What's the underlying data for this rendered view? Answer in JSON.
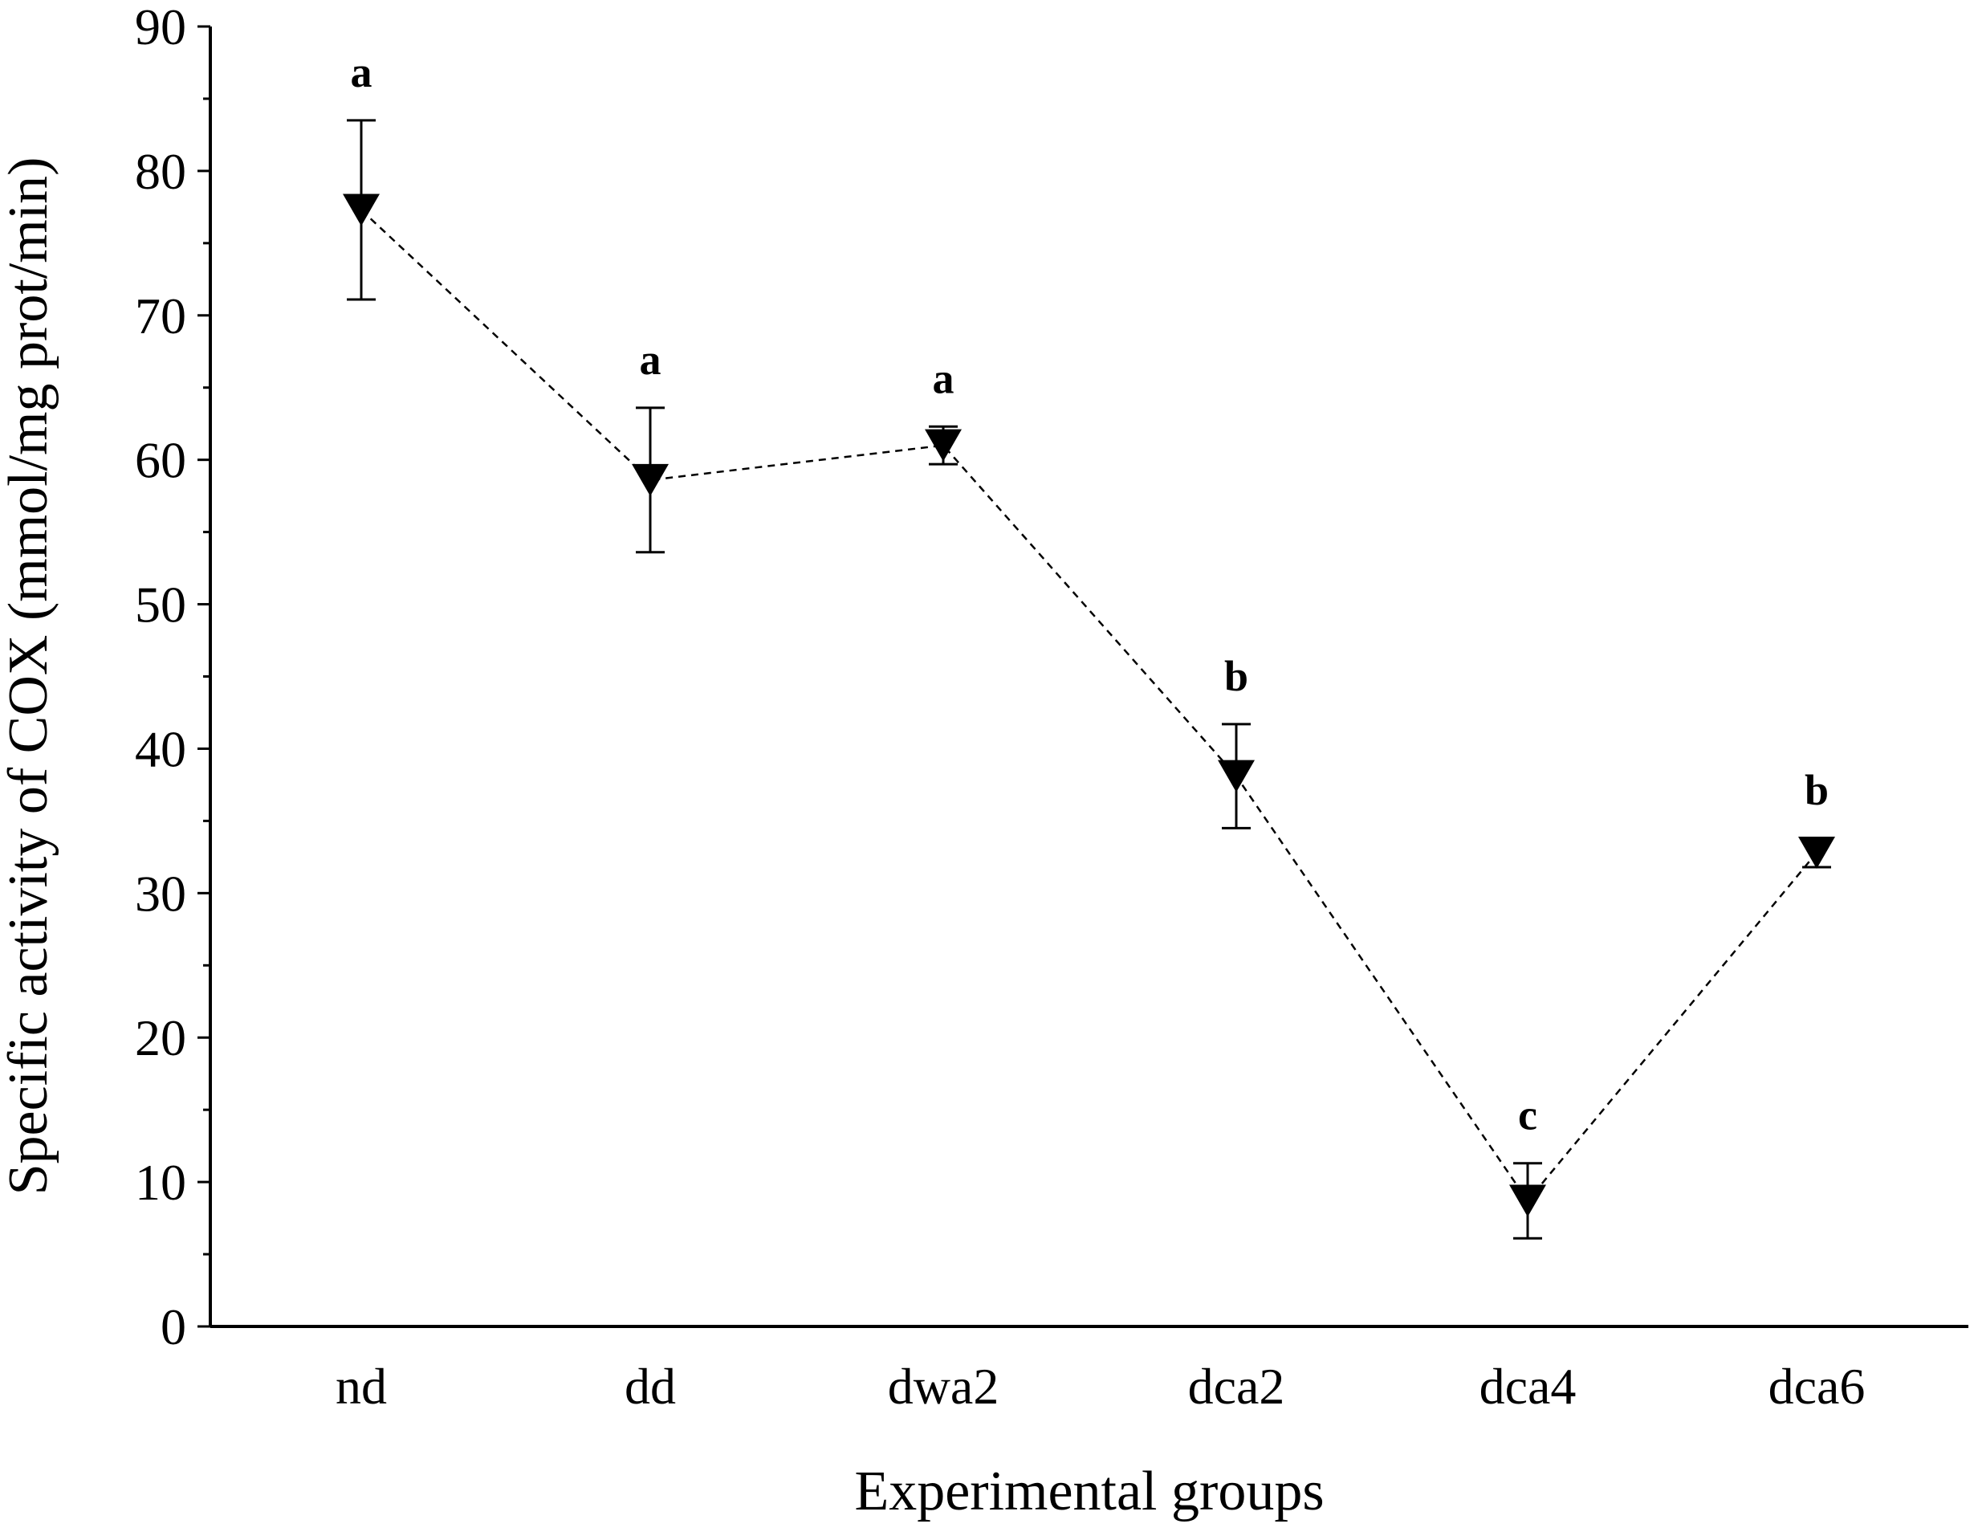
{
  "chart_data": {
    "type": "line",
    "xlabel": "Experimental groups",
    "ylabel": "Specific activity of COX (mmol/mg prot/min)",
    "categories": [
      "nd",
      "dd",
      "dwa2",
      "dca2",
      "dca4",
      "dca6"
    ],
    "ylim": [
      0,
      90
    ],
    "yticks": [
      0,
      10,
      20,
      30,
      40,
      50,
      60,
      70,
      80,
      90
    ],
    "series": [
      {
        "values": [
          77.3,
          58.6,
          61.0,
          38.1,
          8.7,
          32.8
        ],
        "error": [
          6.2,
          5.0,
          1.3,
          3.6,
          2.6,
          1.0
        ],
        "letters": [
          "a",
          "a",
          "a",
          "b",
          "c",
          "b"
        ],
        "marker": "down-triangle",
        "line_style": "dashed",
        "color": "#000000"
      }
    ]
  }
}
